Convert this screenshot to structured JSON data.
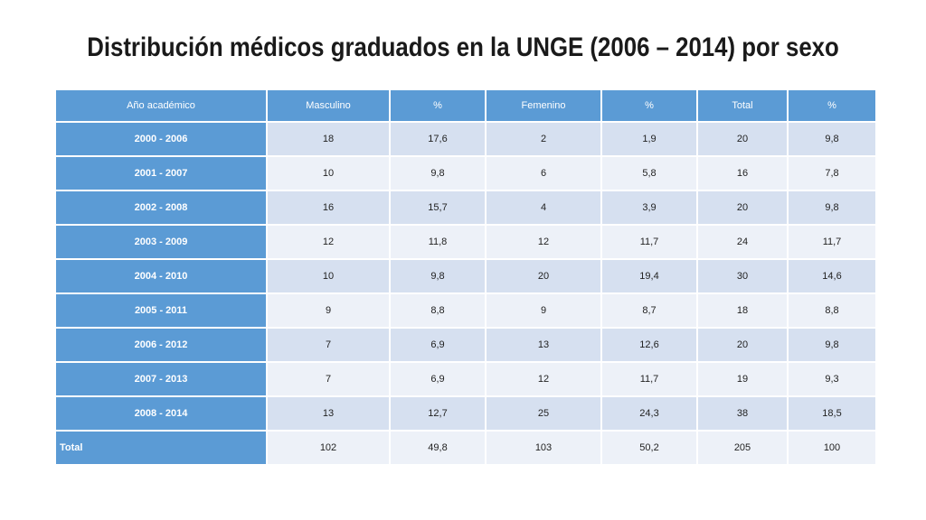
{
  "title": "Distribución médicos graduados en la UNGE (2006 – 2014) por sexo",
  "table": {
    "headers": [
      "Año académico",
      "Masculino",
      "%",
      "Femenino",
      "%",
      "Total",
      "%"
    ],
    "rows": [
      [
        "2000 - 2006",
        "18",
        "17,6",
        "2",
        "1,9",
        "20",
        "9,8"
      ],
      [
        "2001 - 2007",
        "10",
        "9,8",
        "6",
        "5,8",
        "16",
        "7,8"
      ],
      [
        "2002 - 2008",
        "16",
        "15,7",
        "4",
        "3,9",
        "20",
        "9,8"
      ],
      [
        "2003 - 2009",
        "12",
        "11,8",
        "12",
        "11,7",
        "24",
        "11,7"
      ],
      [
        "2004 - 2010",
        "10",
        "9,8",
        "20",
        "19,4",
        "30",
        "14,6"
      ],
      [
        "2005 - 2011",
        "9",
        "8,8",
        "9",
        "8,7",
        "18",
        "8,8"
      ],
      [
        "2006 - 2012",
        "7",
        "6,9",
        "13",
        "12,6",
        "20",
        "9,8"
      ],
      [
        "2007 - 2013",
        "7",
        "6,9",
        "12",
        "11,7",
        "19",
        "9,3"
      ],
      [
        "2008 - 2014",
        "13",
        "12,7",
        "25",
        "24,3",
        "38",
        "18,5"
      ]
    ],
    "total": [
      "Total",
      "102",
      "49,8",
      "103",
      "50,2",
      "205",
      "100"
    ]
  }
}
